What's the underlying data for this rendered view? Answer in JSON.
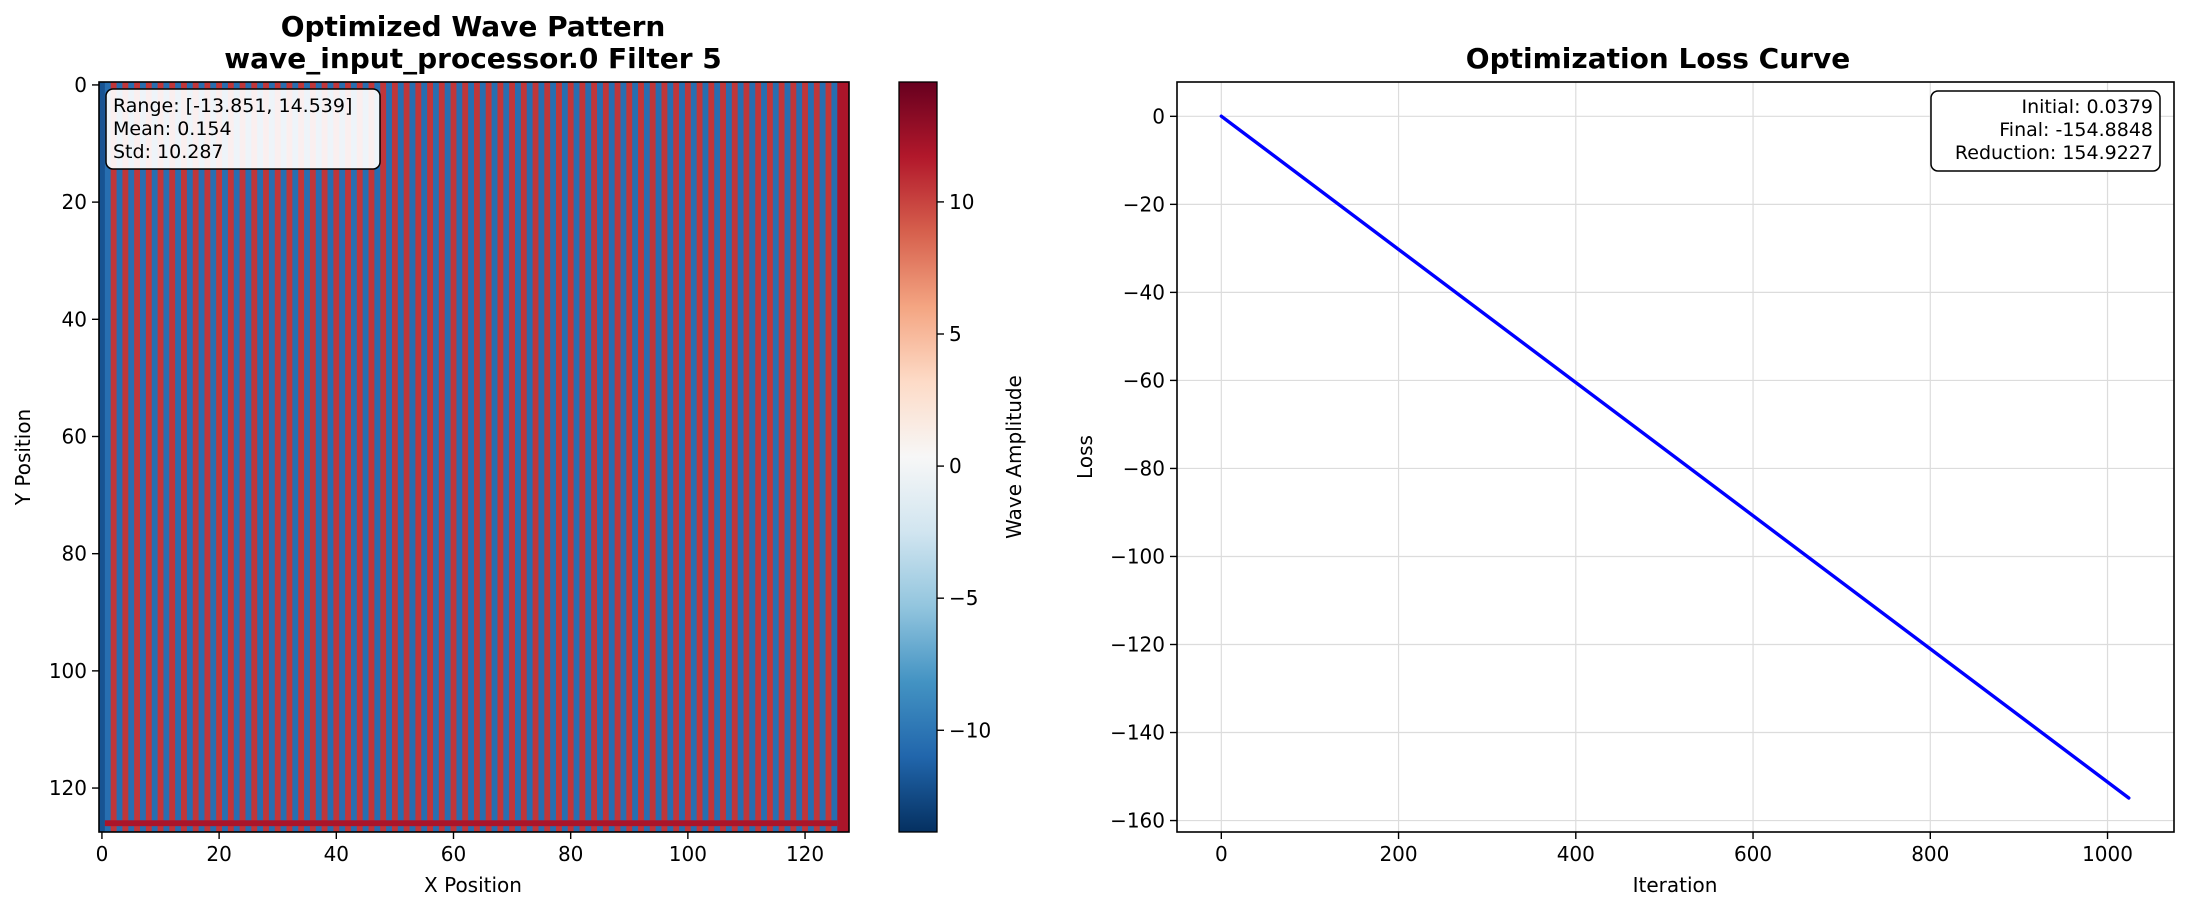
{
  "chart_data": [
    {
      "type": "heatmap",
      "title": "Optimized Wave Pattern\nwave_input_processor.0 Filter 5",
      "title_lines": [
        "Optimized Wave Pattern",
        "wave_input_processor.0 Filter 5"
      ],
      "xlabel": "X Position",
      "ylabel": "Y Position",
      "xlim": [
        0,
        127
      ],
      "ylim": [
        127,
        0
      ],
      "xticks": [
        0,
        20,
        40,
        60,
        80,
        100,
        120
      ],
      "yticks": [
        0,
        20,
        40,
        60,
        80,
        100,
        120
      ],
      "colorbar": {
        "label": "Wave Amplitude",
        "colormap": "RdBu_r",
        "range": [
          -13.851,
          14.539
        ],
        "ticks": [
          -10,
          -5,
          0,
          5,
          10
        ],
        "tick_labels": [
          "−10",
          "−5",
          "0",
          "5",
          "10"
        ]
      },
      "pattern": {
        "description": "vertical stripes alternating red/blue across columns",
        "stripe_period_columns": 2,
        "left_edge_value": -12,
        "right_edge_value": 12,
        "bottom_row_value": 12
      },
      "stats_box": {
        "lines": [
          "Range: [-13.851, 14.539]",
          "Mean: 0.154",
          "Std: 10.287"
        ],
        "placement": "top-left"
      },
      "colors": {
        "negative": "#053061",
        "zero": "#f7f7f7",
        "positive": "#67001f"
      }
    },
    {
      "type": "line",
      "title": "Optimization Loss Curve",
      "xlabel": "Iteration",
      "ylabel": "Loss",
      "xlim": [
        -50,
        1075
      ],
      "ylim": [
        -162.6,
        7.8
      ],
      "xticks": [
        0,
        200,
        400,
        600,
        800,
        1000
      ],
      "yticks": [
        0,
        -20,
        -40,
        -60,
        -80,
        -100,
        -120,
        -140,
        -160
      ],
      "ytick_labels": [
        "0",
        "−20",
        "−40",
        "−60",
        "−80",
        "−100",
        "−120",
        "−140",
        "−160"
      ],
      "grid": true,
      "series": [
        {
          "x": [
            0,
            1024
          ],
          "y": [
            0.0379,
            -154.8848
          ],
          "color": "#0000ff"
        }
      ],
      "stats_box": {
        "lines": [
          "Initial: 0.0379",
          "Final: -154.8848",
          "Reduction: 154.9227"
        ],
        "placement": "top-right"
      }
    }
  ]
}
